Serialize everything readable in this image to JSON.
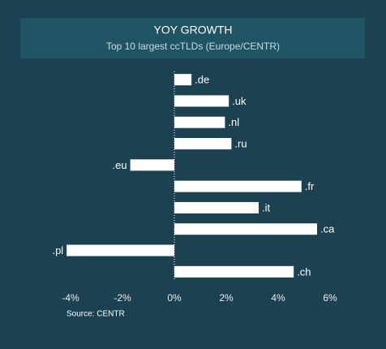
{
  "chart_data": {
    "type": "bar",
    "orientation": "horizontal",
    "title": "YOY GROWTH",
    "subtitle": "Top 10 largest ccTLDs (Europe/CENTR)",
    "source": "Source: CENTR",
    "categories": [
      ".de",
      ".uk",
      ".nl",
      ".ru",
      ".eu",
      ".fr",
      ".it",
      ".ca",
      ".pl",
      ".ch"
    ],
    "values": [
      0.66,
      2.1,
      1.95,
      2.2,
      -1.7,
      4.9,
      3.25,
      5.5,
      -4.15,
      4.6
    ],
    "color": "#ffffff",
    "xlim": [
      -4.2,
      6.2
    ],
    "xticks": [
      {
        "value": -4,
        "label": "-4%"
      },
      {
        "value": -2,
        "label": "-2%"
      },
      {
        "value": 0,
        "label": "0%"
      },
      {
        "value": 2,
        "label": "2%"
      },
      {
        "value": 4,
        "label": "4%"
      },
      {
        "value": 6,
        "label": "6%"
      }
    ],
    "grid": false
  }
}
